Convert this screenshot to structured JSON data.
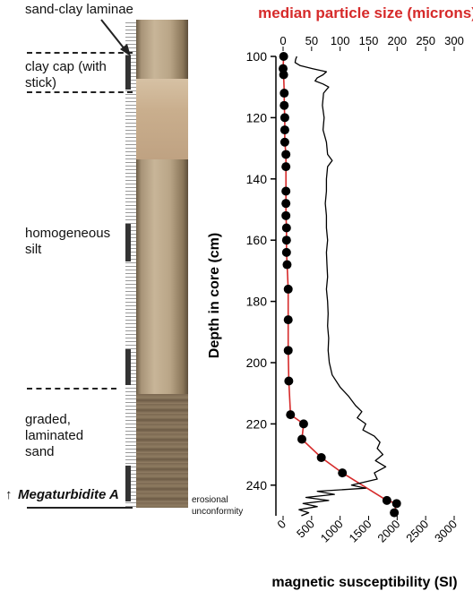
{
  "core_labels": {
    "sand_clay_laminae": "sand-clay laminae",
    "clay_cap": "clay cap (with\nstick)",
    "homogeneous_silt": "homogeneous\nsilt",
    "graded_sand": "graded,\nlaminated\nsand",
    "megaturbidite_arrow": "↑",
    "megaturbidite": "Megaturbidite A",
    "erosional": "erosional\nunconformity"
  },
  "chart_data": {
    "type": "line",
    "top_axis_title": "median particle size (microns)",
    "bottom_axis_title": "magnetic susceptibility (SI)",
    "ylabel": "Depth in core (cm)",
    "ylim": [
      100,
      250
    ],
    "y_ticks": [
      100,
      120,
      140,
      160,
      180,
      200,
      220,
      240
    ],
    "top_xlim": [
      0,
      300
    ],
    "top_ticks": [
      0,
      50,
      100,
      150,
      200,
      250,
      300
    ],
    "bottom_xlim": [
      0,
      3000
    ],
    "bottom_ticks": [
      0,
      500,
      1000,
      1500,
      2000,
      2500,
      3000
    ],
    "accent_color": "#d62a2a",
    "series": [
      {
        "axis": "top",
        "color": "#d62a2a",
        "marker": "circle",
        "points": [
          [
            1,
            100
          ],
          [
            0,
            104
          ],
          [
            1,
            106
          ],
          [
            2,
            112
          ],
          [
            2,
            116
          ],
          [
            3,
            120
          ],
          [
            3,
            124
          ],
          [
            3,
            128
          ],
          [
            5,
            132
          ],
          [
            5,
            136
          ],
          [
            5,
            144
          ],
          [
            5,
            148
          ],
          [
            5,
            152
          ],
          [
            6,
            156
          ],
          [
            6,
            160
          ],
          [
            6,
            164
          ],
          [
            7,
            168
          ],
          [
            9,
            176
          ],
          [
            9,
            186
          ],
          [
            9,
            196
          ],
          [
            10,
            206
          ],
          [
            13,
            217
          ],
          [
            36,
            220
          ],
          [
            33,
            225
          ],
          [
            67,
            231
          ],
          [
            104,
            236
          ],
          [
            182,
            245
          ],
          [
            199,
            246
          ],
          [
            195,
            249
          ]
        ]
      },
      {
        "axis": "bottom",
        "color": "#000000",
        "marker": "none",
        "points": [
          [
            240,
            100
          ],
          [
            220,
            101
          ],
          [
            210,
            102
          ],
          [
            300,
            103
          ],
          [
            520,
            104
          ],
          [
            760,
            105
          ],
          [
            700,
            106
          ],
          [
            600,
            107
          ],
          [
            560,
            108
          ],
          [
            700,
            109
          ],
          [
            800,
            110
          ],
          [
            710,
            112
          ],
          [
            690,
            116
          ],
          [
            720,
            120
          ],
          [
            700,
            124
          ],
          [
            760,
            128
          ],
          [
            780,
            132
          ],
          [
            860,
            134
          ],
          [
            780,
            136
          ],
          [
            760,
            140
          ],
          [
            760,
            144
          ],
          [
            740,
            148
          ],
          [
            760,
            152
          ],
          [
            760,
            156
          ],
          [
            780,
            160
          ],
          [
            760,
            164
          ],
          [
            770,
            168
          ],
          [
            780,
            172
          ],
          [
            760,
            176
          ],
          [
            780,
            180
          ],
          [
            790,
            184
          ],
          [
            780,
            188
          ],
          [
            800,
            192
          ],
          [
            790,
            196
          ],
          [
            810,
            200
          ],
          [
            860,
            204
          ],
          [
            1000,
            208
          ],
          [
            1150,
            211
          ],
          [
            1270,
            214
          ],
          [
            1380,
            216
          ],
          [
            1300,
            218
          ],
          [
            1450,
            220
          ],
          [
            1400,
            222
          ],
          [
            1600,
            224
          ],
          [
            1700,
            226
          ],
          [
            1650,
            228
          ],
          [
            1750,
            230
          ],
          [
            1620,
            232
          ],
          [
            1800,
            234
          ],
          [
            1600,
            236
          ],
          [
            1650,
            238
          ],
          [
            1200,
            240
          ],
          [
            1450,
            241
          ],
          [
            600,
            242
          ],
          [
            900,
            243
          ],
          [
            400,
            244
          ],
          [
            800,
            245
          ],
          [
            350,
            246
          ],
          [
            600,
            247
          ],
          [
            280,
            248
          ],
          [
            450,
            249
          ],
          [
            320,
            250
          ]
        ]
      }
    ]
  }
}
